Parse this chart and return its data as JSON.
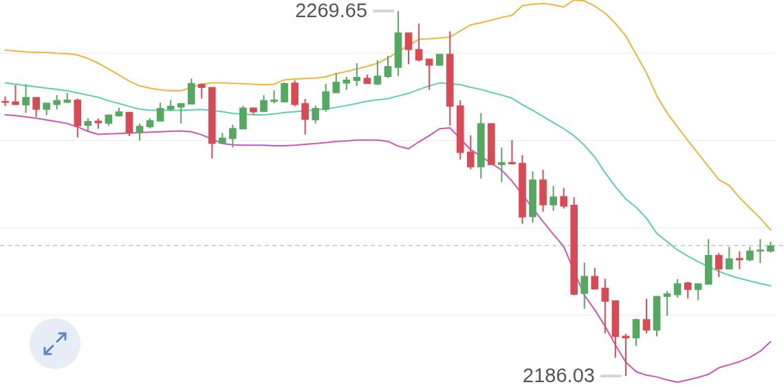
{
  "chart_data": {
    "type": "candlestick",
    "categories": [
      null,
      null,
      null,
      null,
      null,
      null,
      null,
      null,
      null,
      null,
      null,
      null,
      null,
      null,
      null,
      null,
      null,
      null,
      null,
      null,
      null,
      null,
      null,
      null,
      null,
      null,
      null,
      null,
      null,
      null,
      null,
      null,
      null,
      null,
      null,
      null,
      null,
      null,
      null,
      null,
      null,
      null,
      null,
      null,
      null,
      null,
      null,
      null,
      null,
      null,
      null,
      null,
      null,
      null,
      null,
      null,
      null,
      null,
      null,
      null,
      null,
      null,
      null,
      null,
      null,
      null,
      null,
      null,
      null,
      null,
      null,
      null,
      null,
      null,
      null
    ],
    "ohlc": [
      [
        2248.8,
        2250.1,
        2247.9,
        2248.7
      ],
      [
        2248.9,
        2252.7,
        2248.2,
        2248.2
      ],
      [
        2248.1,
        2252.9,
        2246.3,
        2249.9
      ],
      [
        2249.9,
        2249.9,
        2245.4,
        2247.1
      ],
      [
        2247.1,
        2248.6,
        2245.8,
        2248.6
      ],
      [
        2248.2,
        2250.4,
        2247.1,
        2249.2
      ],
      [
        2248.7,
        2250.9,
        2248.6,
        2249.3
      ],
      [
        2249.3,
        2249.6,
        2240.7,
        2243.3
      ],
      [
        2243.4,
        2245.1,
        2242.1,
        2244.4
      ],
      [
        2244.5,
        2245.0,
        2242.7,
        2244.0
      ],
      [
        2243.9,
        2245.9,
        2243.4,
        2245.9
      ],
      [
        2245.6,
        2247.5,
        2245.5,
        2246.6
      ],
      [
        2246.5,
        2246.5,
        2241.0,
        2241.7
      ],
      [
        2241.9,
        2243.9,
        2240.0,
        2243.3
      ],
      [
        2243.1,
        2245.1,
        2242.8,
        2244.6
      ],
      [
        2244.4,
        2248.7,
        2244.4,
        2247.4
      ],
      [
        2247.1,
        2249.2,
        2246.8,
        2247.9
      ],
      [
        2247.6,
        2248.5,
        2243.9,
        2248.5
      ],
      [
        2248.3,
        2254.2,
        2248.3,
        2253.1
      ],
      [
        2252.9,
        2253.1,
        2249.6,
        2252.1
      ],
      [
        2252.2,
        2252.2,
        2235.9,
        2239.3
      ],
      [
        2239.3,
        2241.7,
        2239.2,
        2240.6
      ],
      [
        2240.4,
        2243.6,
        2238.4,
        2242.8
      ],
      [
        2242.6,
        2247.9,
        2242.6,
        2247.5
      ],
      [
        2247.5,
        2247.5,
        2246.0,
        2246.5
      ],
      [
        2246.6,
        2250.4,
        2246.6,
        2249.2
      ],
      [
        2248.9,
        2251.5,
        2248.5,
        2249.3
      ],
      [
        2248.8,
        2253.3,
        2248.7,
        2253.1
      ],
      [
        2253.2,
        2253.8,
        2247.8,
        2248.2
      ],
      [
        2248.5,
        2249.5,
        2241.4,
        2244.8
      ],
      [
        2244.7,
        2248.0,
        2243.9,
        2247.4
      ],
      [
        2247.1,
        2253.0,
        2246.6,
        2251.2
      ],
      [
        2250.9,
        2255.5,
        2250.9,
        2253.4
      ],
      [
        2253.1,
        2254.6,
        2251.6,
        2253.9
      ],
      [
        2253.7,
        2257.7,
        2252.5,
        2254.5
      ],
      [
        2254.3,
        2255.1,
        2253.0,
        2253.0
      ],
      [
        2252.9,
        2258.4,
        2252.7,
        2254.8
      ],
      [
        2254.6,
        2259.4,
        2254.3,
        2257.0
      ],
      [
        2256.7,
        2269.65,
        2254.8,
        2264.7
      ],
      [
        2264.7,
        2264.7,
        2257.5,
        2260.8
      ],
      [
        2260.9,
        2266.8,
        2258.1,
        2258.4
      ],
      [
        2258.7,
        2258.7,
        2251.6,
        2257.2
      ],
      [
        2257.2,
        2259.8,
        2257.1,
        2259.8
      ],
      [
        2259.8,
        2265.0,
        2243.4,
        2247.8
      ],
      [
        2248.0,
        2249.2,
        2235.6,
        2237.2
      ],
      [
        2237.4,
        2241.2,
        2233.4,
        2233.9
      ],
      [
        2233.9,
        2246.3,
        2231.3,
        2243.9
      ],
      [
        2243.9,
        2243.9,
        2234.4,
        2234.4
      ],
      [
        2234.4,
        2238.4,
        2230.5,
        2235.0
      ],
      [
        2235.0,
        2240.1,
        2234.6,
        2234.6
      ],
      [
        2234.8,
        2236.6,
        2220.9,
        2222.4
      ],
      [
        2222.5,
        2232.9,
        2221.1,
        2231.0
      ],
      [
        2231.0,
        2233.3,
        2223.7,
        2225.2
      ],
      [
        2225.2,
        2229.6,
        2223.9,
        2227.1
      ],
      [
        2227.2,
        2229.1,
        2224.4,
        2224.9
      ],
      [
        2225.2,
        2227.0,
        2204.5,
        2204.7
      ],
      [
        2204.9,
        2212.0,
        2201.4,
        2208.9
      ],
      [
        2208.9,
        2210.8,
        2205.9,
        2205.9
      ],
      [
        2206.2,
        2208.3,
        2195.8,
        2203.1
      ],
      [
        2203.3,
        2203.3,
        2190.2,
        2195.0
      ],
      [
        2195.2,
        2195.7,
        2186.03,
        2194.7
      ],
      [
        2194.7,
        2199.2,
        2192.9,
        2199.0
      ],
      [
        2199.0,
        2203.7,
        2195.8,
        2196.5
      ],
      [
        2196.5,
        2204.3,
        2195.1,
        2204.3
      ],
      [
        2204.2,
        2205.5,
        2199.8,
        2204.9
      ],
      [
        2204.6,
        2208.2,
        2204.0,
        2207.2
      ],
      [
        2207.4,
        2207.6,
        2203.8,
        2205.8
      ],
      [
        2205.8,
        2207.2,
        2203.4,
        2207.2
      ],
      [
        2207.0,
        2217.4,
        2207.0,
        2213.7
      ],
      [
        2213.7,
        2214.2,
        2208.7,
        2210.5
      ],
      [
        2210.5,
        2215.6,
        2210.5,
        2212.9
      ],
      [
        2213.0,
        2214.6,
        2210.5,
        2212.6
      ],
      [
        2212.6,
        2215.6,
        2212.3,
        2214.7
      ],
      [
        2214.6,
        2217.4,
        2211.9,
        2214.9
      ],
      [
        2214.6,
        2216.8,
        2214.3,
        2215.9
      ]
    ],
    "colors": [
      "#d94a55",
      "#d94a55",
      "#55a860",
      "#d94a55",
      "#55a860",
      "#55a860",
      "#55a860",
      "#d94a55",
      "#55a860",
      "#d94a55",
      "#55a860",
      "#55a860",
      "#d94a55",
      "#55a860",
      "#55a860",
      "#55a860",
      "#55a860",
      "#55a860",
      "#55a860",
      "#d94a55",
      "#d94a55",
      "#55a860",
      "#55a860",
      "#55a860",
      "#d94a55",
      "#55a860",
      "#55a860",
      "#55a860",
      "#d94a55",
      "#d94a55",
      "#55a860",
      "#55a860",
      "#55a860",
      "#55a860",
      "#55a860",
      "#d94a55",
      "#55a860",
      "#55a860",
      "#55a860",
      "#d94a55",
      "#d94a55",
      "#d94a55",
      "#55a860",
      "#d94a55",
      "#d94a55",
      "#d94a55",
      "#55a860",
      "#d94a55",
      "#55a860",
      "#d94a55",
      "#d94a55",
      "#55a860",
      "#d94a55",
      "#55a860",
      "#d94a55",
      "#d94a55",
      "#55a860",
      "#d94a55",
      "#d94a55",
      "#d94a55",
      "#d94a55",
      "#55a860",
      "#d94a55",
      "#55a860",
      "#55a860",
      "#55a860",
      "#d94a55",
      "#55a860",
      "#55a860",
      "#d94a55",
      "#55a860",
      "#d94a55",
      "#55a860",
      "#55a860",
      "#55a860"
    ],
    "series": [
      {
        "type": "line",
        "color": "#f0b43c",
        "values": [
          2260.7,
          2260.5,
          2260.3,
          2260.2,
          2260.2,
          2260.0,
          2259.9,
          2259.6,
          2258.8,
          2257.7,
          2256.4,
          2255.0,
          2253.6,
          2252.5,
          2252.0,
          2251.6,
          2251.4,
          2251.4,
          null,
          2252.9,
          2253.2,
          2253.2,
          2253.1,
          2253.0,
          2252.9,
          2252.8,
          2252.9,
          2253.9,
          2254.1,
          2254.2,
          2254.3,
          2254.6,
          2255.3,
          2255.8,
          2256.4,
          2257.0,
          2257.7,
          2258.9,
          null,
          null,
          2263.2,
          2263.3,
          2263.5,
          2263.7,
          2265.1,
          2266.5,
          2267.0,
          2267.6,
          2268.2,
          2268.7,
          2270.9,
          2271.2,
          2271.4,
          2271.1,
          2270.6,
          2272.2,
          2272.0,
          2270.8,
          2269.2,
          2266.8,
          2264.0,
          2259.7,
          2255.5,
          2250.2,
          2246.3,
          2243.1,
          2240.0,
          2237.0,
          2234.0,
          2231.0,
          2229.7,
          2226.9,
          2224.5,
          2222.2,
          2219.5
        ]
      },
      {
        "type": "line",
        "color": "#5ccfae",
        "values": [
          2253.2,
          2252.9,
          2252.6,
          2252.3,
          2252.0,
          2251.7,
          2251.4,
          2250.9,
          2250.4,
          2249.9,
          2249.1,
          2248.5,
          2247.8,
          2247.2,
          2246.9,
          null,
          2246.9,
          2246.9,
          2247.0,
          2247.1,
          null,
          2246.6,
          2246.2,
          null,
          2245.9,
          2245.9,
          2246.1,
          2246.4,
          2246.6,
          null,
          null,
          2247.2,
          2247.6,
          2248.0,
          2248.5,
          2249.0,
          2249.3,
          2249.6,
          2250.2,
          2250.8,
          2251.7,
          2252.5,
          2253.2,
          null,
          2252.8,
          2252.2,
          2251.7,
          2251.0,
          2250.4,
          2249.7,
          2248.2,
          2246.9,
          2245.5,
          2244.1,
          2242.7,
          2241.1,
          2238.9,
          2236.2,
          2232.6,
          2229.4,
          2226.6,
          2224.7,
          2222.2,
          2218.7,
          2216.8,
          2214.9,
          2213.5,
          2212.2,
          null,
          2210.0,
          2209.1,
          2208.4,
          2207.8,
          2207.2,
          2206.7
        ]
      },
      {
        "type": "line",
        "color": "#cc55b5",
        "values": [
          2245.9,
          2245.7,
          2245.4,
          2245.1,
          2244.7,
          2244.3,
          2243.9,
          2243.1,
          2242.1,
          2241.4,
          2241.5,
          2241.6,
          2241.7,
          2241.8,
          2241.9,
          2242.0,
          2242.1,
          2242.2,
          2242.0,
          2241.3,
          null,
          2239.3,
          2239.0,
          2238.9,
          2238.9,
          2238.9,
          2238.8,
          2238.8,
          2238.9,
          2239.1,
          2239.3,
          2239.5,
          2239.8,
          2239.9,
          2240.1,
          2240.1,
          2240.1,
          2239.8,
          2238.7,
          2238.1,
          2239.7,
          2241.1,
          2242.7,
          2242.9,
          null,
          2237.9,
          null,
          null,
          2233.2,
          2230.7,
          null,
          null,
          2221.4,
          2218.5,
          2215.7,
          null,
          2204.5,
          2201.2,
          2197.4,
          2193.1,
          2189.2,
          2187.0,
          2186.2,
          2185.8,
          2185.1,
          2184.6,
          2185.1,
          2185.7,
          2186.4,
          2187.9,
          2188.6,
          2189.3,
          2190.3,
          2191.7,
          2193.9
        ]
      }
    ],
    "yticks": [
      {
        "value": 2200,
        "label": null
      },
      {
        "value": 2220,
        "label": null
      },
      {
        "value": 2240,
        "label": null
      },
      {
        "value": 2260,
        "label": null
      }
    ],
    "grid": "y",
    "tick_labels": false,
    "ref_lines": [
      {
        "axis": "y",
        "value": 2215.9,
        "line_style": "dashed",
        "color": "#c8c8c8"
      }
    ],
    "annotations": [
      "2269.65",
      "2186.03"
    ]
  }
}
